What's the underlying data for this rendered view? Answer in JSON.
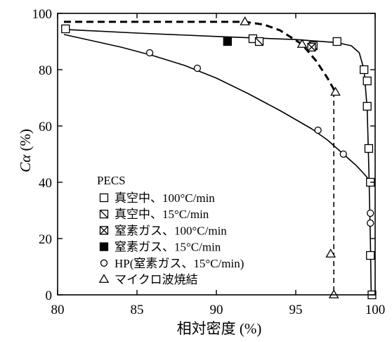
{
  "chart_data": {
    "type": "scatter",
    "xlabel": "相対密度 (%)",
    "ylabel_main": "Cα",
    "ylabel_unit": " (%)",
    "xlim": [
      80,
      100
    ],
    "ylim": [
      0,
      100
    ],
    "x_ticks": [
      80,
      85,
      90,
      95,
      100
    ],
    "y_ticks": [
      0,
      20,
      40,
      60,
      80,
      100
    ],
    "legend_title": "PECS",
    "legend_position": "bottom-left",
    "series": [
      {
        "name": "真空中、100°C/min",
        "marker": "square",
        "x": [
          80.5,
          92.3,
          97.6,
          99.3,
          99.5,
          99.5,
          99.6,
          99.7,
          99.7,
          99.8
        ],
        "y": [
          94.5,
          91,
          90,
          80,
          76,
          67,
          52,
          40,
          14,
          0
        ]
      },
      {
        "name": "真空中、15°C/min",
        "marker": "square-slash",
        "x": [
          92.7,
          96.1
        ],
        "y": [
          90,
          88.5
        ]
      },
      {
        "name": "窒素ガス、100°C/min",
        "marker": "square-cross",
        "x": [
          96.0
        ],
        "y": [
          88
        ]
      },
      {
        "name": "窒素ガス、15°C/min",
        "marker": "square-filled",
        "x": [
          90.7
        ],
        "y": [
          90
        ]
      },
      {
        "name": "HP(窒素ガス、15°C/min)",
        "marker": "circle",
        "x": [
          85.8,
          88.8,
          96.4,
          98.0,
          99.7,
          99.7
        ],
        "y": [
          86,
          80.5,
          58.5,
          50,
          29,
          25.5
        ]
      },
      {
        "name": "マイクロ波焼結",
        "marker": "triangle",
        "x": [
          91.8,
          95.4,
          97.5,
          97.2,
          97.4
        ],
        "y": [
          97,
          89,
          72,
          14.5,
          0
        ]
      }
    ],
    "curves": [
      {
        "series": "真空中、100°C/min",
        "style": "solid",
        "x": [
          80.4,
          85,
          90,
          95,
          97.6,
          98.5,
          99.0,
          99.3,
          99.5,
          99.6,
          99.7,
          99.75
        ],
        "y": [
          94.3,
          93.0,
          91.8,
          90.7,
          89.6,
          88.5,
          86.0,
          80.0,
          66.0,
          45.0,
          20.0,
          0
        ]
      },
      {
        "series": "HP(窒素ガス、15°C/min)",
        "style": "solid",
        "x": [
          80.4,
          82,
          84,
          86,
          88,
          90,
          92,
          94,
          96,
          97,
          98,
          98.8,
          99.3,
          99.6,
          99.8
        ],
        "y": [
          92.5,
          90.5,
          88,
          85,
          81.5,
          77,
          71.5,
          65.5,
          59,
          55,
          50,
          46,
          43,
          41,
          40
        ]
      },
      {
        "series": "マイクロ波焼結",
        "style": "dashed",
        "x": [
          80.4,
          84,
          88,
          91.8,
          93,
          94,
          95.4,
          96.3,
          97.0,
          97.5
        ],
        "y": [
          97,
          97,
          97,
          97,
          96,
          94,
          89,
          83,
          77,
          72
        ]
      },
      {
        "series": "マイクロ波焼結",
        "style": "dashed",
        "x": [
          97.4,
          97.4
        ],
        "y": [
          72,
          0
        ]
      }
    ]
  }
}
